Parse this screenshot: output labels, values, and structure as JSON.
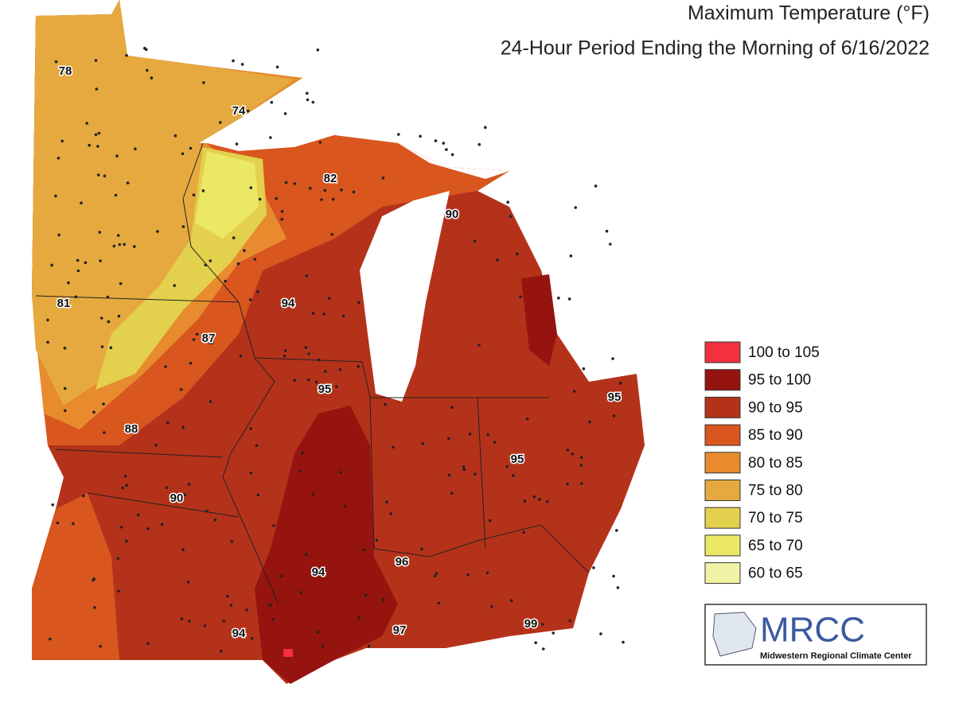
{
  "header": {
    "title": "Maximum Temperature (°F)",
    "subtitle": "24-Hour Period Ending the Morning of 6/16/2022"
  },
  "station_values": [
    78,
    74,
    82,
    90,
    81,
    94,
    87,
    95,
    95,
    88,
    95,
    90,
    94,
    96,
    94,
    97,
    99
  ],
  "legend": [
    {
      "label": "100 to 105",
      "color": "#f2303f"
    },
    {
      "label": "95 to 100",
      "color": "#95140f"
    },
    {
      "label": "90 to 95",
      "color": "#b5321a"
    },
    {
      "label": "85 to 90",
      "color": "#d9561f"
    },
    {
      "label": "80 to 85",
      "color": "#e78b2e"
    },
    {
      "label": "75 to 80",
      "color": "#e5a93f"
    },
    {
      "label": "70 to 75",
      "color": "#e3d04c"
    },
    {
      "label": "65 to 70",
      "color": "#ebe866"
    },
    {
      "label": "60 to 65",
      "color": "#f2f2a6"
    }
  ],
  "logo": {
    "name": "MRCC",
    "full_name": "Midwestern Regional Climate Center"
  }
}
